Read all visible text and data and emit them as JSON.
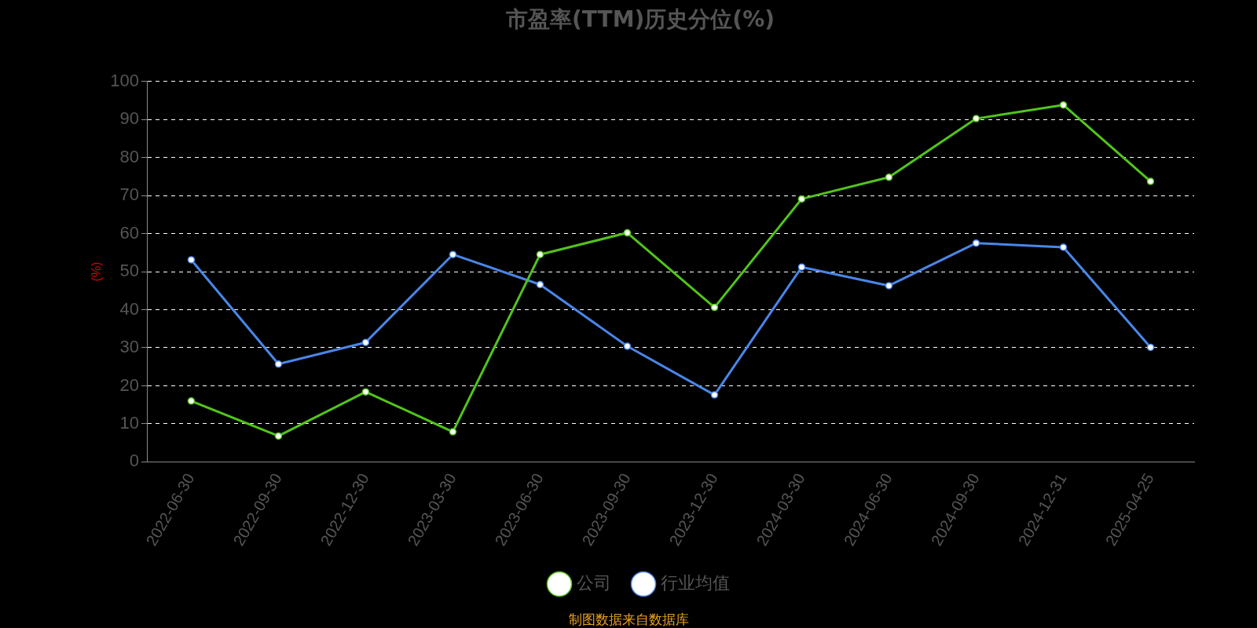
{
  "chart_data": {
    "type": "line",
    "title": "市盈率(TTM)历史分位(%)",
    "ylabel": "(%)",
    "categories": [
      "2022-06-30",
      "2022-09-30",
      "2022-12-30",
      "2023-03-30",
      "2023-06-30",
      "2023-09-30",
      "2023-12-30",
      "2024-03-30",
      "2024-06-30",
      "2024-09-30",
      "2024-12-31",
      "2025-04-25"
    ],
    "series": [
      {
        "name": "公司",
        "color": "#52c41a",
        "values": [
          16,
          6.8,
          18.4,
          7.9,
          54.5,
          60.2,
          40.6,
          69.1,
          74.8,
          90.2,
          93.8,
          73.7
        ]
      },
      {
        "name": "行业均值",
        "color": "#4a86e8",
        "values": [
          53.1,
          25.7,
          31.4,
          54.5,
          46.6,
          30.4,
          17.6,
          51.2,
          46.3,
          57.5,
          56.4,
          30.1
        ]
      }
    ],
    "ylim": [
      0,
      100
    ],
    "yticks": [
      0,
      10,
      20,
      30,
      40,
      50,
      60,
      70,
      80,
      90,
      100
    ],
    "grid": "y",
    "line_style": "solid",
    "marker": "circle",
    "legend": "bottom",
    "annotations": [
      "制图数据来自数据库"
    ]
  }
}
